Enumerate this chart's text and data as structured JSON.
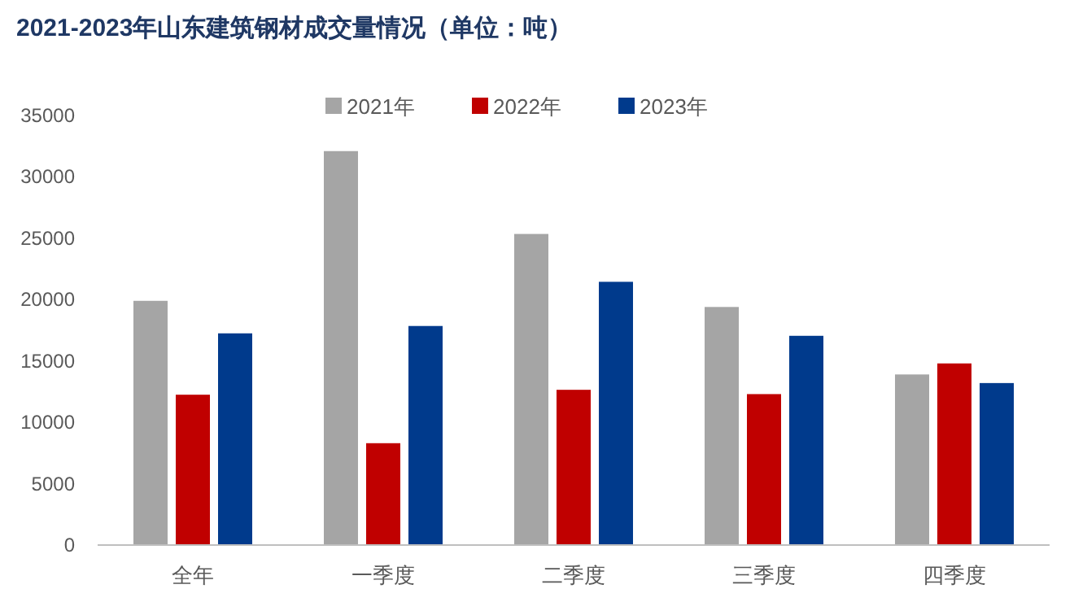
{
  "chart_data": {
    "type": "bar",
    "title": "2021-2023年山东建筑钢材成交量情况（单位：吨）",
    "categories": [
      "全年",
      "一季度",
      "二季度",
      "三季度",
      "四季度"
    ],
    "series": [
      {
        "name": "2021年",
        "color": "#a5a5a5",
        "values": [
          19900,
          32100,
          25350,
          19400,
          13900
        ]
      },
      {
        "name": "2022年",
        "color": "#c00000",
        "values": [
          12250,
          8300,
          12650,
          12300,
          14800
        ]
      },
      {
        "name": "2023年",
        "color": "#003a8c",
        "values": [
          17250,
          17850,
          21450,
          17050,
          13200
        ]
      }
    ],
    "ylim": [
      0,
      35000
    ],
    "yticks": [
      0,
      5000,
      10000,
      15000,
      20000,
      25000,
      30000,
      35000
    ],
    "grid": false,
    "legend": "top"
  }
}
